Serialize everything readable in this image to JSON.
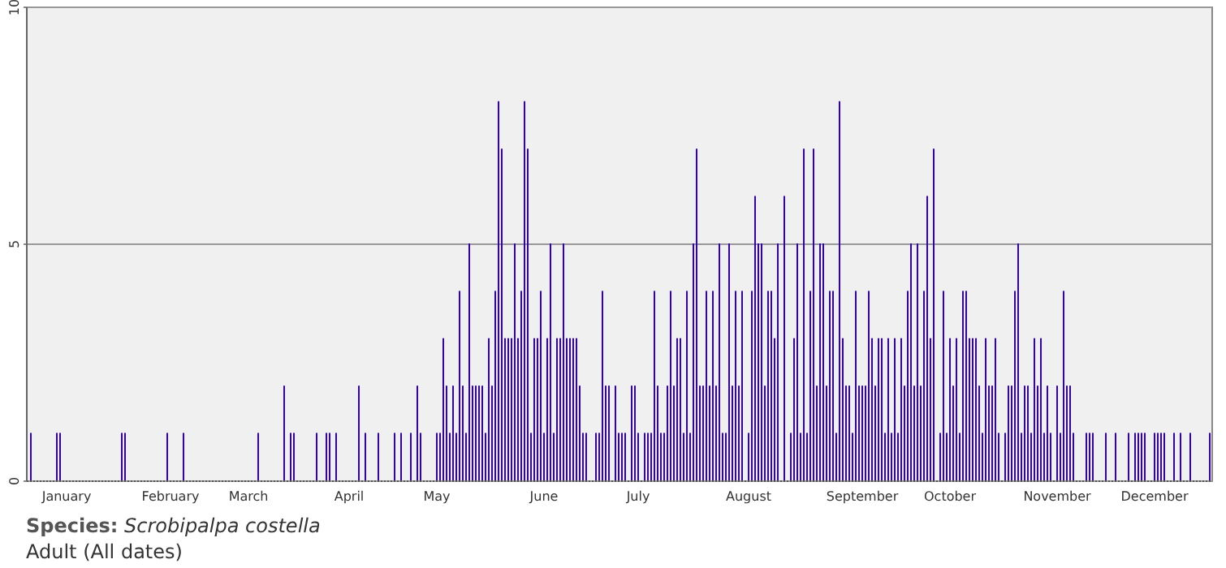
{
  "chart_data": {
    "type": "bar",
    "color": "#3300bb",
    "categories": [
      null,
      null,
      null,
      null,
      null,
      null,
      null,
      null,
      null,
      null,
      null,
      null,
      "January",
      null,
      null,
      null,
      null,
      null,
      null,
      null,
      null,
      null,
      null,
      null,
      null,
      null,
      null,
      null,
      null,
      null,
      null,
      null,
      null,
      null,
      null,
      null,
      null,
      null,
      null,
      null,
      null,
      null,
      null,
      null,
      "February",
      null,
      null,
      null,
      null,
      null,
      null,
      null,
      null,
      null,
      null,
      null,
      null,
      null,
      null,
      null,
      null,
      null,
      null,
      null,
      null,
      null,
      null,
      null,
      "March",
      null,
      null,
      null,
      null,
      null,
      null,
      null,
      null,
      null,
      null,
      null,
      null,
      null,
      null,
      null,
      null,
      null,
      null,
      null,
      null,
      null,
      null,
      null,
      null,
      null,
      null,
      null,
      null,
      null,
      null,
      "April",
      null,
      null,
      null,
      null,
      null,
      null,
      null,
      null,
      null,
      null,
      null,
      null,
      null,
      null,
      null,
      null,
      null,
      null,
      null,
      null,
      null,
      null,
      null,
      null,
      null,
      null,
      "May",
      null,
      null,
      null,
      null,
      null,
      null,
      null,
      null,
      null,
      null,
      null,
      null,
      null,
      null,
      null,
      null,
      null,
      null,
      null,
      null,
      null,
      null,
      null,
      null,
      null,
      null,
      null,
      null,
      null,
      null,
      null,
      null,
      "June",
      null,
      null,
      null,
      null,
      null,
      null,
      null,
      null,
      null,
      null,
      null,
      null,
      null,
      null,
      null,
      null,
      null,
      null,
      null,
      null,
      null,
      null,
      null,
      null,
      null,
      null,
      null,
      null,
      "July",
      null,
      null,
      null,
      null,
      null,
      null,
      null,
      null,
      null,
      null,
      null,
      null,
      null,
      null,
      null,
      null,
      null,
      null,
      null,
      null,
      null,
      null,
      null,
      null,
      null,
      null,
      null,
      null,
      null,
      null,
      null,
      null,
      null,
      "August",
      null,
      null,
      null,
      null,
      null,
      null,
      null,
      null,
      null,
      null,
      null,
      null,
      null,
      null,
      null,
      null,
      null,
      null,
      null,
      null,
      null,
      null,
      null,
      null,
      null,
      null,
      null,
      null,
      null,
      null,
      null,
      null,
      null,
      null,
      "September",
      null,
      null,
      null,
      null,
      null,
      null,
      null,
      null,
      null,
      null,
      null,
      null,
      null,
      null,
      null,
      null,
      null,
      null,
      null,
      null,
      null,
      null,
      null,
      null,
      null,
      null,
      "October",
      null,
      null,
      null,
      null,
      null,
      null,
      null,
      null,
      null,
      null,
      null,
      null,
      null,
      null,
      null,
      null,
      null,
      null,
      null,
      null,
      null,
      null,
      null,
      null,
      null,
      null,
      null,
      null,
      null,
      null,
      null,
      null,
      "November",
      null,
      null,
      null,
      null,
      null,
      null,
      null,
      null,
      null,
      null,
      null,
      null,
      null,
      null,
      null,
      null,
      null,
      null,
      null,
      null,
      null,
      null,
      null,
      null,
      null,
      null,
      null,
      null,
      null,
      "December",
      null,
      null,
      null,
      null,
      null,
      null,
      null,
      null,
      null,
      null,
      null,
      null,
      null,
      null,
      null,
      null,
      null
    ],
    "values": [
      0,
      1,
      0,
      0,
      0,
      0,
      0,
      0,
      0,
      1,
      1,
      0,
      0,
      0,
      0,
      0,
      0,
      0,
      0,
      0,
      0,
      0,
      0,
      0,
      0,
      0,
      0,
      0,
      0,
      1,
      1,
      0,
      0,
      0,
      0,
      0,
      0,
      0,
      0,
      0,
      0,
      0,
      0,
      1,
      0,
      0,
      0,
      0,
      1,
      0,
      0,
      0,
      0,
      0,
      0,
      0,
      0,
      0,
      0,
      0,
      0,
      0,
      0,
      0,
      0,
      0,
      0,
      0,
      0,
      0,
      0,
      1,
      0,
      0,
      0,
      0,
      0,
      0,
      0,
      2,
      0,
      1,
      1,
      0,
      0,
      0,
      0,
      0,
      0,
      1,
      0,
      0,
      1,
      1,
      0,
      1,
      0,
      0,
      0,
      0,
      0,
      0,
      2,
      0,
      1,
      0,
      0,
      0,
      1,
      0,
      0,
      0,
      0,
      1,
      0,
      1,
      0,
      0,
      1,
      0,
      2,
      1,
      0,
      0,
      0,
      0,
      1,
      1,
      3,
      2,
      1,
      2,
      1,
      4,
      2,
      1,
      5,
      2,
      2,
      2,
      2,
      1,
      3,
      2,
      4,
      8,
      7,
      3,
      3,
      3,
      5,
      3,
      4,
      8,
      7,
      1,
      3,
      3,
      4,
      1,
      3,
      5,
      1,
      3,
      3,
      5,
      3,
      3,
      3,
      3,
      2,
      1,
      1,
      0,
      0,
      1,
      1,
      4,
      2,
      2,
      0,
      2,
      1,
      1,
      1,
      0,
      2,
      2,
      1,
      0,
      1,
      1,
      1,
      4,
      2,
      1,
      1,
      2,
      4,
      2,
      3,
      3,
      1,
      4,
      1,
      5,
      7,
      2,
      2,
      4,
      2,
      4,
      2,
      5,
      1,
      1,
      5,
      2,
      4,
      2,
      4,
      0,
      1,
      4,
      6,
      5,
      5,
      2,
      4,
      4,
      3,
      5,
      0,
      6,
      0,
      1,
      3,
      5,
      1,
      7,
      1,
      4,
      7,
      2,
      5,
      5,
      2,
      4,
      4,
      1,
      8,
      3,
      2,
      2,
      1,
      4,
      2,
      2,
      2,
      4,
      3,
      2,
      3,
      3,
      1,
      3,
      1,
      3,
      1,
      3,
      2,
      4,
      5,
      2,
      5,
      2,
      4,
      6,
      3,
      7,
      0,
      1,
      4,
      1,
      3,
      2,
      3,
      1,
      4,
      4,
      3,
      3,
      3,
      2,
      1,
      3,
      2,
      2,
      3,
      1,
      0,
      1,
      2,
      2,
      4,
      5,
      1,
      2,
      2,
      1,
      3,
      2,
      3,
      1,
      2,
      1,
      0,
      2,
      1,
      4,
      2,
      2,
      1,
      0,
      0,
      0,
      1,
      1,
      1,
      0,
      0,
      0,
      1,
      0,
      0,
      1,
      0,
      0,
      0,
      1,
      0,
      1,
      1,
      1,
      1,
      0,
      0,
      1,
      1,
      1,
      1,
      0,
      0,
      1,
      0,
      1,
      0,
      0,
      1,
      0,
      0,
      0,
      0,
      0,
      1
    ],
    "ylim": [
      0,
      10
    ],
    "yticks": [
      0,
      5,
      10
    ],
    "grid": "y",
    "annotations": [
      "Species: Scrobipalpa costella",
      "Adult (All dates)"
    ]
  }
}
